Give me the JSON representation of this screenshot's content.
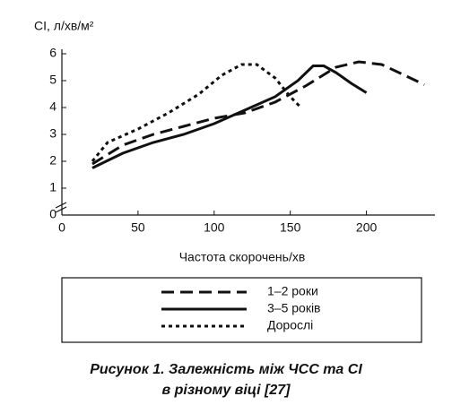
{
  "chart_data": {
    "type": "line",
    "y_label": "СІ, л/хв/м²",
    "x_label": "Частота скорочень/хв",
    "caption": [
      "Рисунок 1. Залежність між ЧСС та СІ",
      "в різному віці [27]"
    ],
    "xlim": [
      0,
      245
    ],
    "ylim": [
      0,
      6
    ],
    "xticks": [
      0,
      50,
      100,
      150,
      200
    ],
    "yticks": [
      0,
      1,
      2,
      3,
      4,
      5,
      6
    ],
    "grid": false,
    "series": [
      {
        "name": "1–2 роки",
        "color": "#111111",
        "dash": "dashed",
        "x": [
          20,
          40,
          60,
          80,
          100,
          120,
          140,
          160,
          180,
          195,
          210,
          225,
          238
        ],
        "values": [
          1.9,
          2.6,
          3.0,
          3.3,
          3.6,
          3.8,
          4.2,
          4.8,
          5.5,
          5.7,
          5.6,
          5.2,
          4.85
        ]
      },
      {
        "name": "3–5 років",
        "color": "#111111",
        "dash": "solid",
        "x": [
          20,
          40,
          60,
          80,
          100,
          120,
          140,
          155,
          165,
          172,
          180,
          190,
          200
        ],
        "values": [
          1.75,
          2.3,
          2.7,
          3.0,
          3.4,
          3.9,
          4.4,
          5.0,
          5.55,
          5.55,
          5.3,
          4.9,
          4.55
        ]
      },
      {
        "name": "Дорослі",
        "color": "#111111",
        "dash": "dotted",
        "x": [
          20,
          30,
          50,
          70,
          90,
          105,
          118,
          128,
          140,
          150,
          157
        ],
        "values": [
          2.0,
          2.7,
          3.2,
          3.8,
          4.5,
          5.2,
          5.6,
          5.6,
          5.1,
          4.4,
          4.0
        ]
      }
    ]
  }
}
